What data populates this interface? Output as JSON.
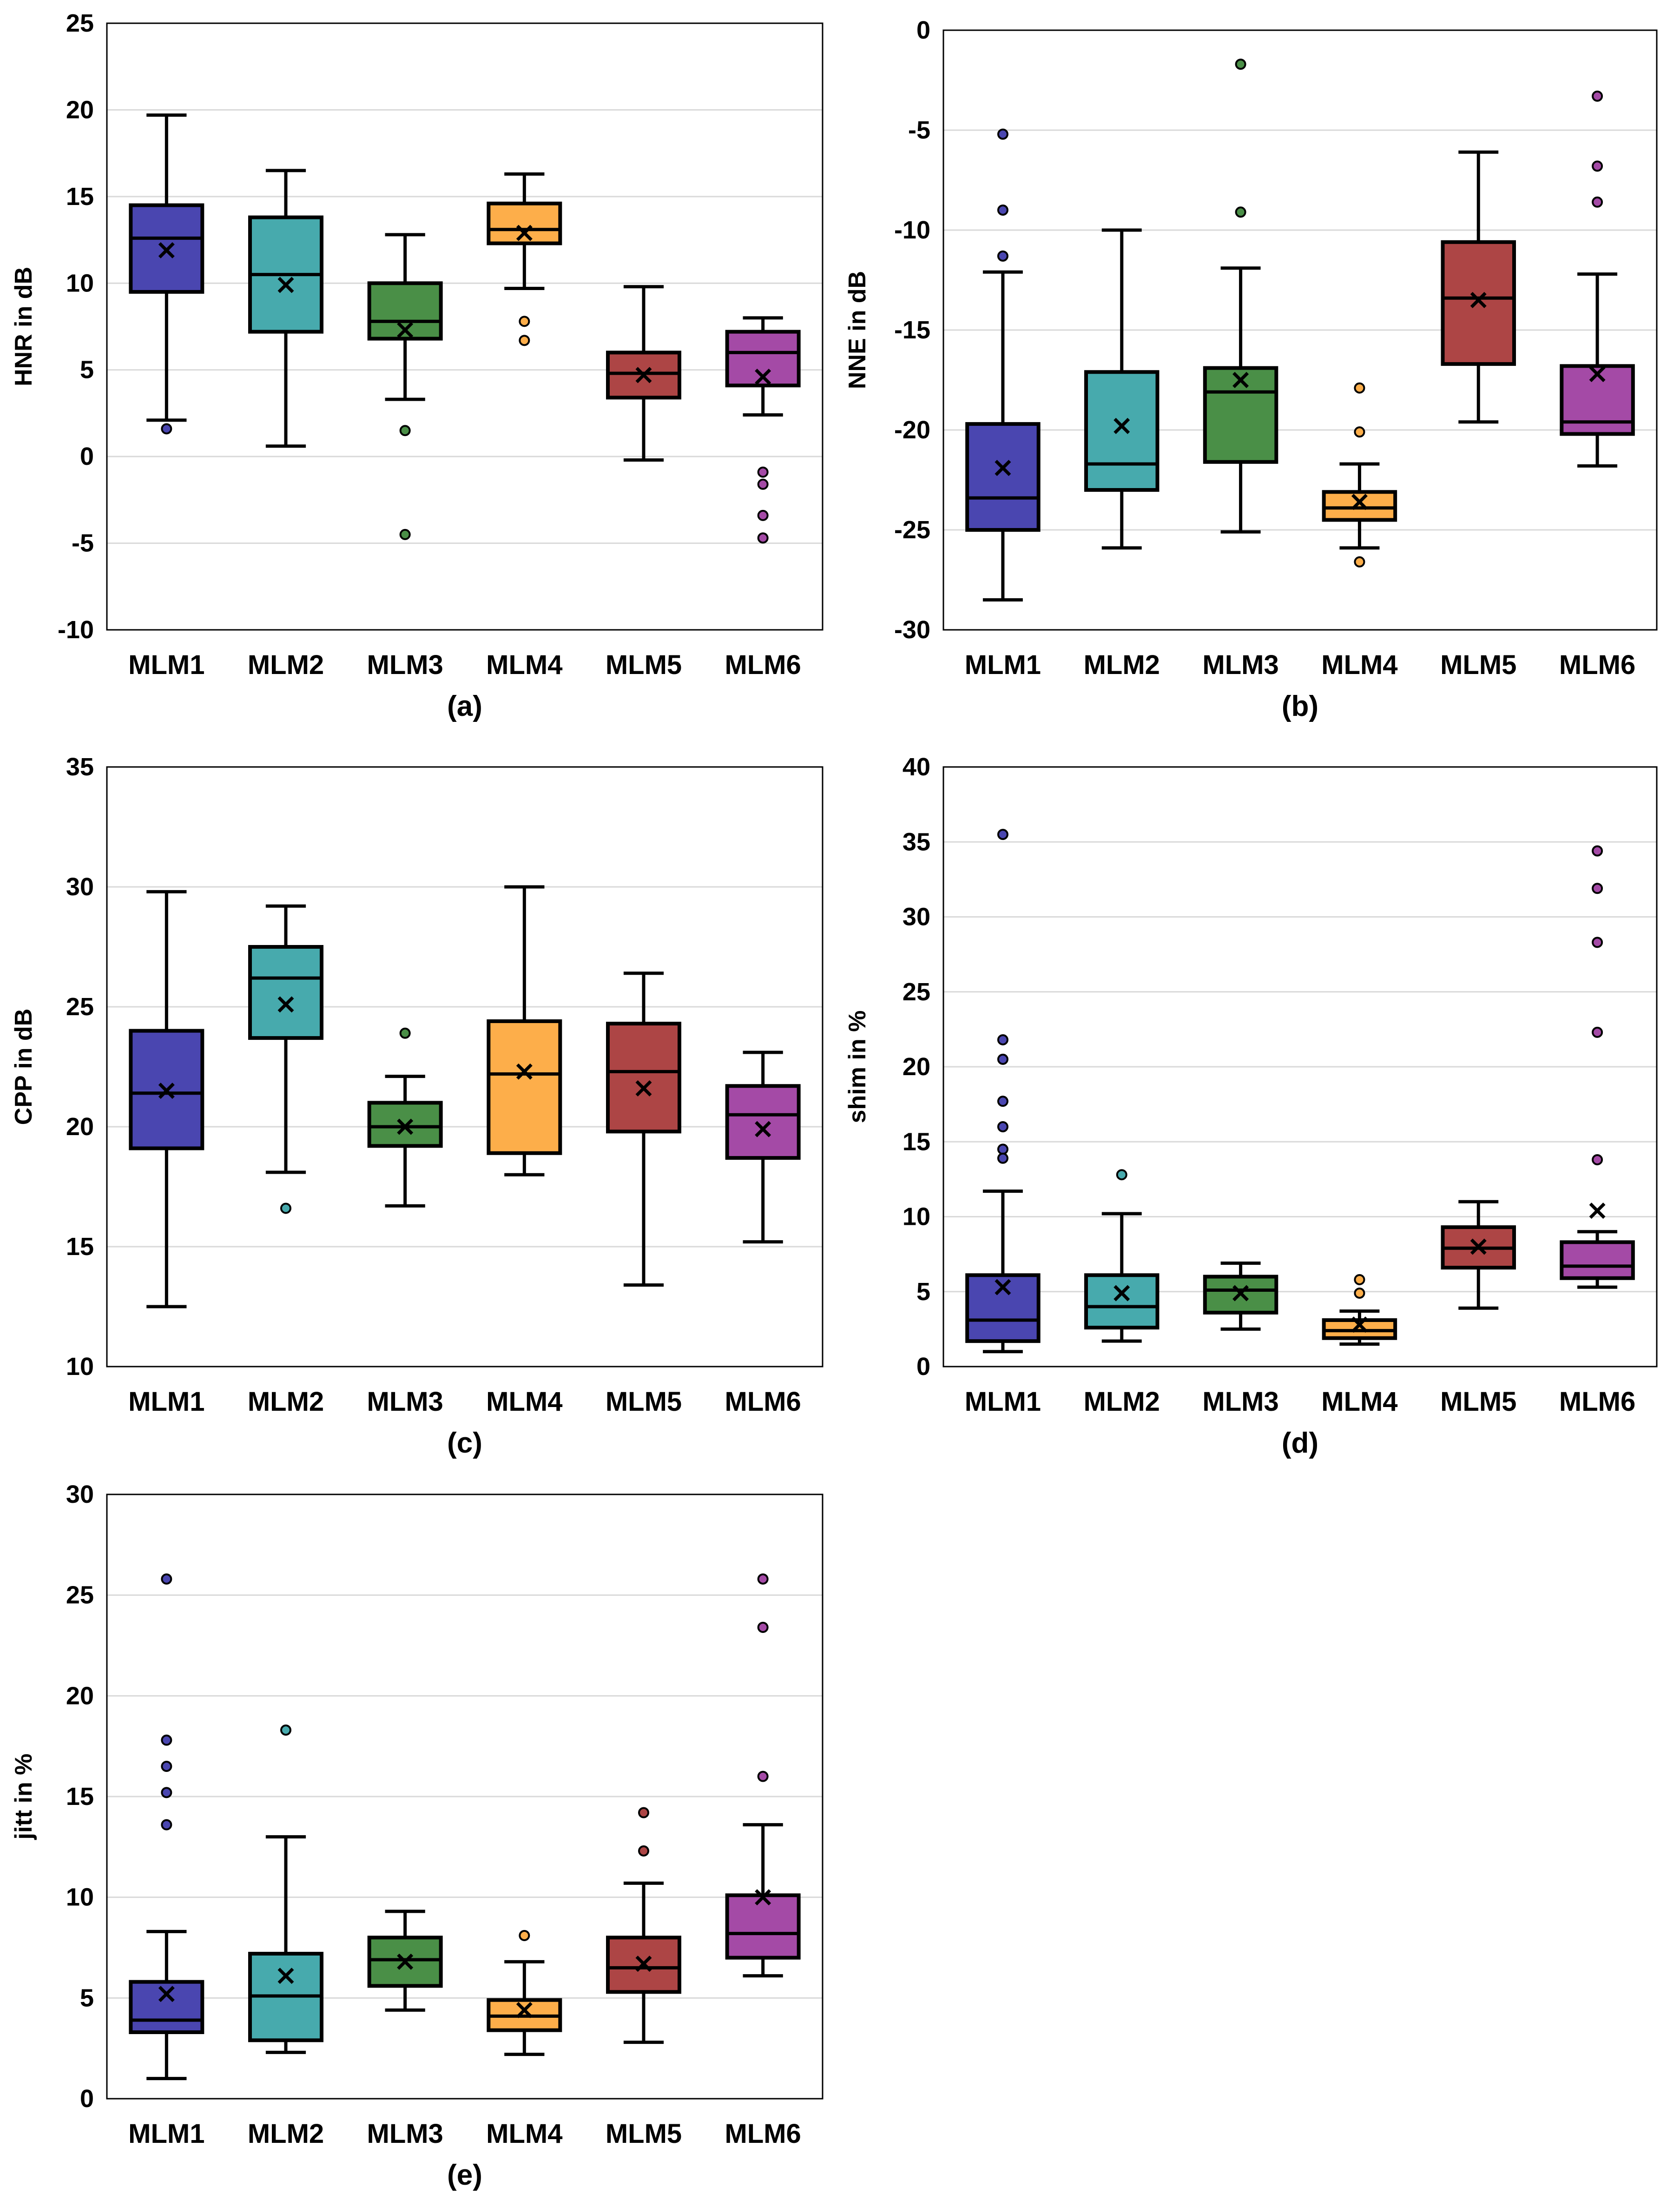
{
  "colors": {
    "MLM1": "#4a46b0",
    "MLM2": "#47aaad",
    "MLM3": "#4a8f47",
    "MLM4": "#fdae4a",
    "MLM5": "#ad4545",
    "MLM6": "#a44aa6",
    "axis": "#000000",
    "grid": "#d9d9d9"
  },
  "chart_data": [
    {
      "type": "box",
      "panel_label": "(a)",
      "title": "",
      "ylabel": "HNR in dB",
      "xlabel": "",
      "ylim": [
        -10,
        25
      ],
      "yticks": [
        -10,
        -5,
        0,
        5,
        10,
        15,
        20,
        25
      ],
      "grid": true,
      "legend": "none",
      "categories": [
        "MLM1",
        "MLM2",
        "MLM3",
        "MLM4",
        "MLM5",
        "MLM6"
      ],
      "boxes": [
        {
          "name": "MLM1",
          "whisker_low": 2.1,
          "q1": 9.5,
          "median": 12.6,
          "q3": 14.5,
          "whisker_high": 19.7,
          "mean": 11.9,
          "outliers": [
            1.6
          ]
        },
        {
          "name": "MLM2",
          "whisker_low": 0.6,
          "q1": 7.2,
          "median": 10.5,
          "q3": 13.8,
          "whisker_high": 16.5,
          "mean": 9.9,
          "outliers": []
        },
        {
          "name": "MLM3",
          "whisker_low": 3.3,
          "q1": 6.8,
          "median": 7.8,
          "q3": 10.0,
          "whisker_high": 12.8,
          "mean": 7.3,
          "outliers": [
            1.5,
            -4.5
          ]
        },
        {
          "name": "MLM4",
          "whisker_low": 9.7,
          "q1": 12.3,
          "median": 13.1,
          "q3": 14.6,
          "whisker_high": 16.3,
          "mean": 12.9,
          "outliers": [
            7.8,
            6.7
          ]
        },
        {
          "name": "MLM5",
          "whisker_low": -0.2,
          "q1": 3.4,
          "median": 4.8,
          "q3": 6.0,
          "whisker_high": 9.8,
          "mean": 4.7,
          "outliers": []
        },
        {
          "name": "MLM6",
          "whisker_low": 2.4,
          "q1": 4.1,
          "median": 6.0,
          "q3": 7.2,
          "whisker_high": 8.0,
          "mean": 4.6,
          "outliers": [
            -0.9,
            -1.6,
            -3.4,
            -4.7
          ]
        }
      ]
    },
    {
      "type": "box",
      "panel_label": "(b)",
      "title": "",
      "ylabel": "NNE in dB",
      "xlabel": "",
      "ylim": [
        -30,
        0
      ],
      "yticks": [
        -30,
        -25,
        -20,
        -15,
        -10,
        -5,
        0
      ],
      "grid": true,
      "legend": "none",
      "categories": [
        "MLM1",
        "MLM2",
        "MLM3",
        "MLM4",
        "MLM5",
        "MLM6"
      ],
      "boxes": [
        {
          "name": "MLM1",
          "whisker_low": -28.5,
          "q1": -25.0,
          "median": -23.4,
          "q3": -19.7,
          "whisker_high": -12.1,
          "mean": -21.9,
          "outliers": [
            -5.2,
            -9.0,
            -11.3
          ]
        },
        {
          "name": "MLM2",
          "whisker_low": -25.9,
          "q1": -23.0,
          "median": -21.7,
          "q3": -17.1,
          "whisker_high": -10.0,
          "mean": -19.8,
          "outliers": []
        },
        {
          "name": "MLM3",
          "whisker_low": -25.1,
          "q1": -21.6,
          "median": -18.1,
          "q3": -16.9,
          "whisker_high": -11.9,
          "mean": -17.5,
          "outliers": [
            -1.7,
            -9.1
          ]
        },
        {
          "name": "MLM4",
          "whisker_low": -25.9,
          "q1": -24.5,
          "median": -23.9,
          "q3": -23.1,
          "whisker_high": -21.7,
          "mean": -23.6,
          "outliers": [
            -17.9,
            -20.1,
            -26.6
          ]
        },
        {
          "name": "MLM5",
          "whisker_low": -19.6,
          "q1": -16.7,
          "median": -13.4,
          "q3": -10.6,
          "whisker_high": -6.1,
          "mean": -13.5,
          "outliers": []
        },
        {
          "name": "MLM6",
          "whisker_low": -21.8,
          "q1": -20.2,
          "median": -19.6,
          "q3": -16.8,
          "whisker_high": -12.2,
          "mean": -17.2,
          "outliers": [
            -3.3,
            -6.8,
            -8.6
          ]
        }
      ]
    },
    {
      "type": "box",
      "panel_label": "(c)",
      "title": "",
      "ylabel": "CPP in dB",
      "xlabel": "",
      "ylim": [
        10,
        35
      ],
      "yticks": [
        10,
        15,
        20,
        25,
        30,
        35
      ],
      "grid": true,
      "legend": "none",
      "categories": [
        "MLM1",
        "MLM2",
        "MLM3",
        "MLM4",
        "MLM5",
        "MLM6"
      ],
      "boxes": [
        {
          "name": "MLM1",
          "whisker_low": 12.5,
          "q1": 19.1,
          "median": 21.4,
          "q3": 24.0,
          "whisker_high": 29.8,
          "mean": 21.5,
          "outliers": []
        },
        {
          "name": "MLM2",
          "whisker_low": 18.1,
          "q1": 23.7,
          "median": 26.2,
          "q3": 27.5,
          "whisker_high": 29.2,
          "mean": 25.1,
          "outliers": [
            16.6
          ]
        },
        {
          "name": "MLM3",
          "whisker_low": 16.7,
          "q1": 19.2,
          "median": 20.0,
          "q3": 21.0,
          "whisker_high": 22.1,
          "mean": 20.0,
          "outliers": [
            23.9
          ]
        },
        {
          "name": "MLM4",
          "whisker_low": 18.0,
          "q1": 18.9,
          "median": 22.2,
          "q3": 24.4,
          "whisker_high": 30.0,
          "mean": 22.3,
          "outliers": []
        },
        {
          "name": "MLM5",
          "whisker_low": 13.4,
          "q1": 19.8,
          "median": 22.3,
          "q3": 24.3,
          "whisker_high": 26.4,
          "mean": 21.6,
          "outliers": []
        },
        {
          "name": "MLM6",
          "whisker_low": 15.2,
          "q1": 18.7,
          "median": 20.5,
          "q3": 21.7,
          "whisker_high": 23.1,
          "mean": 19.9,
          "outliers": []
        }
      ]
    },
    {
      "type": "box",
      "panel_label": "(d)",
      "title": "",
      "ylabel": "shim in %",
      "xlabel": "",
      "ylim": [
        0,
        40
      ],
      "yticks": [
        0,
        5,
        10,
        15,
        20,
        25,
        30,
        35,
        40
      ],
      "grid": true,
      "legend": "none",
      "categories": [
        "MLM1",
        "MLM2",
        "MLM3",
        "MLM4",
        "MLM5",
        "MLM6"
      ],
      "boxes": [
        {
          "name": "MLM1",
          "whisker_low": 1.0,
          "q1": 1.7,
          "median": 3.1,
          "q3": 6.1,
          "whisker_high": 11.7,
          "mean": 5.3,
          "outliers": [
            35.5,
            21.8,
            20.5,
            17.7,
            16.0,
            14.5,
            13.9
          ]
        },
        {
          "name": "MLM2",
          "whisker_low": 1.7,
          "q1": 2.6,
          "median": 4.0,
          "q3": 6.1,
          "whisker_high": 10.2,
          "mean": 4.9,
          "outliers": [
            12.8
          ]
        },
        {
          "name": "MLM3",
          "whisker_low": 2.5,
          "q1": 3.6,
          "median": 5.1,
          "q3": 6.0,
          "whisker_high": 6.9,
          "mean": 4.9,
          "outliers": []
        },
        {
          "name": "MLM4",
          "whisker_low": 1.5,
          "q1": 1.9,
          "median": 2.4,
          "q3": 3.1,
          "whisker_high": 3.7,
          "mean": 2.8,
          "outliers": [
            5.8,
            4.9
          ]
        },
        {
          "name": "MLM5",
          "whisker_low": 3.9,
          "q1": 6.6,
          "median": 7.9,
          "q3": 9.3,
          "whisker_high": 11.0,
          "mean": 8.0,
          "outliers": []
        },
        {
          "name": "MLM6",
          "whisker_low": 5.3,
          "q1": 5.9,
          "median": 6.7,
          "q3": 8.3,
          "whisker_high": 9.0,
          "mean": 10.4,
          "outliers": [
            34.4,
            31.9,
            28.3,
            22.3,
            13.8
          ]
        }
      ]
    },
    {
      "type": "box",
      "panel_label": "(e)",
      "title": "",
      "ylabel": "jitt in %",
      "xlabel": "",
      "ylim": [
        0,
        30
      ],
      "yticks": [
        0,
        5,
        10,
        15,
        20,
        25,
        30
      ],
      "grid": true,
      "legend": "none",
      "categories": [
        "MLM1",
        "MLM2",
        "MLM3",
        "MLM4",
        "MLM5",
        "MLM6"
      ],
      "boxes": [
        {
          "name": "MLM1",
          "whisker_low": 1.0,
          "q1": 3.3,
          "median": 3.9,
          "q3": 5.8,
          "whisker_high": 8.3,
          "mean": 5.2,
          "outliers": [
            25.8,
            17.8,
            16.5,
            15.2,
            13.6
          ]
        },
        {
          "name": "MLM2",
          "whisker_low": 2.3,
          "q1": 2.9,
          "median": 5.1,
          "q3": 7.2,
          "whisker_high": 13.0,
          "mean": 6.1,
          "outliers": [
            18.3
          ]
        },
        {
          "name": "MLM3",
          "whisker_low": 4.4,
          "q1": 5.6,
          "median": 6.9,
          "q3": 8.0,
          "whisker_high": 9.3,
          "mean": 6.8,
          "outliers": []
        },
        {
          "name": "MLM4",
          "whisker_low": 2.2,
          "q1": 3.4,
          "median": 4.1,
          "q3": 4.9,
          "whisker_high": 6.8,
          "mean": 4.4,
          "outliers": [
            8.1
          ]
        },
        {
          "name": "MLM5",
          "whisker_low": 2.8,
          "q1": 5.3,
          "median": 6.5,
          "q3": 8.0,
          "whisker_high": 10.7,
          "mean": 6.7,
          "outliers": [
            14.2,
            12.3
          ]
        },
        {
          "name": "MLM6",
          "whisker_low": 6.1,
          "q1": 7.0,
          "median": 8.2,
          "q3": 10.1,
          "whisker_high": 13.6,
          "mean": 10.0,
          "outliers": [
            25.8,
            23.4,
            16.0
          ]
        }
      ]
    }
  ]
}
